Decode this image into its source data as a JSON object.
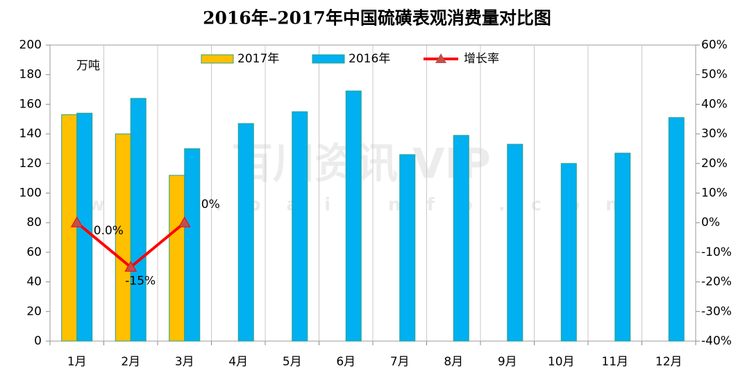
{
  "chart_data": {
    "type": "bar",
    "title": "2016年–2017年中国硫磺表观消费量对比图",
    "unit_label": "万吨",
    "watermark": "百川资讯 VIP",
    "watermark_url": "w w w . b a i i n f o . c o m",
    "categories": [
      "1月",
      "2月",
      "3月",
      "4月",
      "5月",
      "6月",
      "7月",
      "8月",
      "9月",
      "10月",
      "11月",
      "12月"
    ],
    "series": [
      {
        "name": "2017年",
        "color": "#FFC000",
        "values": [
          153,
          140,
          112,
          null,
          null,
          null,
          null,
          null,
          null,
          null,
          null,
          null
        ]
      },
      {
        "name": "2016年",
        "color": "#00B0F0",
        "values": [
          154,
          164,
          130,
          147,
          155,
          169,
          126,
          139,
          133,
          120,
          127,
          151
        ]
      },
      {
        "name": "增长率",
        "type": "line",
        "axis": "y2",
        "color": "#FF0000",
        "marker_color": "#C0504D",
        "values": [
          0,
          -15,
          0,
          null,
          null,
          null,
          null,
          null,
          null,
          null,
          null,
          null
        ],
        "value_labels": [
          "0.0%",
          "-15%",
          "0%",
          null,
          null,
          null,
          null,
          null,
          null,
          null,
          null,
          null
        ]
      }
    ],
    "ylim": [
      0,
      200
    ],
    "yticks": [
      0,
      20,
      40,
      60,
      80,
      100,
      120,
      140,
      160,
      180,
      200
    ],
    "y2lim": [
      -40,
      60
    ],
    "y2ticks": [
      {
        "value": -40,
        "label": "-40%"
      },
      {
        "value": -30,
        "label": "-30%"
      },
      {
        "value": -20,
        "label": "-20%"
      },
      {
        "value": -10,
        "label": "-10%"
      },
      {
        "value": 0,
        "label": "0%"
      },
      {
        "value": 10,
        "label": "10%"
      },
      {
        "value": 20,
        "label": "20%"
      },
      {
        "value": 30,
        "label": "30%"
      },
      {
        "value": 40,
        "label": "40%"
      },
      {
        "value": 50,
        "label": "50%"
      },
      {
        "value": 60,
        "label": "60%"
      }
    ],
    "grid": "x",
    "legend": "top"
  }
}
